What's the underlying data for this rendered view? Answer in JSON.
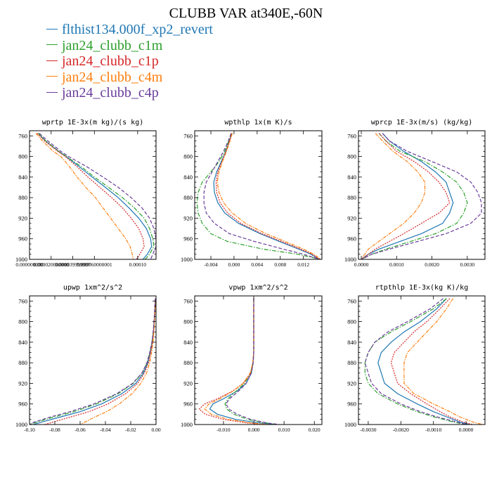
{
  "title": "CLUBB VAR at340E,-60N",
  "legend": [
    {
      "name": "flthist134.000f_xp2_revert",
      "color": "#1f77b4"
    },
    {
      "name": "jan24_clubb_c1m",
      "color": "#2ca02c"
    },
    {
      "name": "jan24_clubb_c1p",
      "color": "#d62728"
    },
    {
      "name": "jan24_clubb_c4m",
      "color": "#ff7f0e"
    },
    {
      "name": "jan24_clubb_c4p",
      "color": "#6a3d9a"
    }
  ],
  "chart_data": [
    {
      "type": "line",
      "title": "wprtp  1E-3x(m kg)/(s kg)",
      "xlim": [
        0,
        0.000117
      ],
      "ylim": [
        1000,
        750
      ],
      "y_ticks": [
        760,
        800,
        840,
        880,
        920,
        960,
        1000
      ],
      "x_ticks": [
        0.0,
        2e-05,
        4e-05,
        6e-05,
        0.0001
      ],
      "x_tick_labels": [
        "0.000000000",
        "0.000020000000",
        "0.000039999997",
        "0.000060000001",
        "0.00010"
      ],
      "y": [
        755,
        770,
        790,
        800,
        820,
        840,
        860,
        880,
        900,
        920,
        940,
        960,
        975,
        990,
        1000
      ],
      "series": [
        {
          "name": "flthist134.000f_xp2_revert",
          "x": [
            8e-06,
            1.5e-05,
            2.7e-05,
            3.4e-05,
            4.6e-05,
            5.8e-05,
            7e-05,
            8.2e-05,
            9.2e-05,
            0.000101,
            0.000108,
            0.000112,
            0.000113,
            0.000109,
            0.000105
          ]
        },
        {
          "name": "jan24_clubb_c1m",
          "x": [
            8e-06,
            1.5e-05,
            2.7e-05,
            3.4e-05,
            4.8e-05,
            6e-05,
            7.3e-05,
            8.6e-05,
            9.7e-05,
            0.000106,
            0.000111,
            0.000114,
            0.000115,
            0.000111,
            0.000107
          ]
        },
        {
          "name": "jan24_clubb_c1p",
          "x": [
            7e-06,
            1.4e-05,
            2.6e-05,
            3.3e-05,
            4.4e-05,
            5.4e-05,
            6.5e-05,
            7.6e-05,
            8.6e-05,
            9.4e-05,
            0.000101,
            0.000105,
            0.000106,
            0.000102,
            9.9e-05
          ]
        },
        {
          "name": "jan24_clubb_c4m",
          "x": [
            6e-06,
            1.2e-05,
            2.2e-05,
            2.9e-05,
            3.7e-05,
            4.4e-05,
            5.2e-05,
            6.1e-05,
            6.8e-05,
            7.5e-05,
            8.2e-05,
            8.9e-05,
            9.3e-05,
            9.5e-05,
            9.6e-05
          ]
        },
        {
          "name": "jan24_clubb_c4p",
          "x": [
            9e-06,
            1.7e-05,
            2.9e-05,
            3.6e-05,
            5.3e-05,
            6.8e-05,
            8.2e-05,
            9.4e-05,
            0.000104,
            0.000111,
            0.000115,
            0.000117,
            0.000117,
            0.000114,
            0.000112
          ]
        }
      ]
    },
    {
      "type": "line",
      "title": "wpthlp  1x(m K)/s",
      "xlim": [
        -0.0068,
        0.0152
      ],
      "ylim": [
        1000,
        750
      ],
      "y_ticks": [
        760,
        800,
        840,
        880,
        920,
        960,
        1000
      ],
      "x_ticks": [
        -0.004,
        0.0,
        0.004,
        0.008,
        0.012
      ],
      "x_tick_labels": [
        "-0.004",
        "0.000",
        "0.004",
        "0.008",
        "0.012"
      ],
      "y": [
        755,
        770,
        790,
        810,
        830,
        850,
        870,
        890,
        910,
        930,
        950,
        965,
        980,
        990,
        1000
      ],
      "series": [
        {
          "name": "flthist134.000f_xp2_revert",
          "x": [
            -0.0004,
            -0.0008,
            -0.0014,
            -0.0022,
            -0.003,
            -0.0035,
            -0.0034,
            -0.0028,
            -0.0016,
            0.0008,
            0.0045,
            0.0078,
            0.0112,
            0.0133,
            0.0147
          ]
        },
        {
          "name": "jan24_clubb_c1m",
          "x": [
            -0.0004,
            -0.0009,
            -0.0016,
            -0.0026,
            -0.004,
            -0.0055,
            -0.0062,
            -0.0064,
            -0.0062,
            -0.0055,
            -0.004,
            -0.0012,
            0.005,
            0.011,
            0.015
          ]
        },
        {
          "name": "jan24_clubb_c1p",
          "x": [
            -0.0004,
            -0.0008,
            -0.0014,
            -0.0021,
            -0.0028,
            -0.0031,
            -0.003,
            -0.0024,
            -0.0011,
            0.0012,
            0.0048,
            0.0082,
            0.0115,
            0.0135,
            0.0148
          ]
        },
        {
          "name": "jan24_clubb_c4m",
          "x": [
            -0.0003,
            -0.0007,
            -0.0013,
            -0.002,
            -0.0026,
            -0.0029,
            -0.0026,
            -0.0018,
            -0.0003,
            0.002,
            0.0055,
            0.0088,
            0.012,
            0.0138,
            0.015
          ]
        },
        {
          "name": "jan24_clubb_c4p",
          "x": [
            -0.0005,
            -0.001,
            -0.0018,
            -0.0028,
            -0.0038,
            -0.0048,
            -0.0052,
            -0.0052,
            -0.0048,
            -0.0034,
            -0.0008,
            0.0035,
            0.0085,
            0.012,
            0.0148
          ]
        }
      ]
    },
    {
      "type": "line",
      "title": "wprcp  1E-3x(m/s) (kg/kg)",
      "xlim": [
        -8e-05,
        0.0035
      ],
      "ylim": [
        1000,
        750
      ],
      "y_ticks": [
        760,
        800,
        840,
        880,
        920,
        960,
        1000
      ],
      "x_ticks": [
        0.0,
        0.001,
        0.002,
        0.003
      ],
      "x_tick_labels": [
        "0.0000",
        "0.0010",
        "0.0020",
        "0.0030"
      ],
      "y": [
        755,
        770,
        790,
        810,
        830,
        850,
        870,
        890,
        910,
        930,
        950,
        965,
        980,
        990,
        1000
      ],
      "series": [
        {
          "name": "flthist134.000f_xp2_revert",
          "x": [
            0.0006,
            0.0008,
            0.0012,
            0.0017,
            0.0021,
            0.0024,
            0.0025,
            0.0026,
            0.0025,
            0.0023,
            0.0017,
            0.0011,
            0.0005,
            0.0002,
            0.0
          ]
        },
        {
          "name": "jan24_clubb_c1m",
          "x": [
            0.0005,
            0.0007,
            0.0011,
            0.0018,
            0.0023,
            0.0027,
            0.0029,
            0.003,
            0.0029,
            0.0027,
            0.0021,
            0.0014,
            0.0007,
            0.0003,
            0.0
          ]
        },
        {
          "name": "jan24_clubb_c1p",
          "x": [
            0.0005,
            0.0007,
            0.001,
            0.0015,
            0.0019,
            0.0022,
            0.0024,
            0.0025,
            0.0022,
            0.0017,
            0.0012,
            0.0008,
            0.0004,
            0.0002,
            0.0
          ]
        },
        {
          "name": "jan24_clubb_c4m",
          "x": [
            0.0004,
            0.0006,
            0.0009,
            0.0013,
            0.0016,
            0.0018,
            0.0018,
            0.0017,
            0.0015,
            0.0012,
            0.0008,
            0.0005,
            0.0002,
            0.0001,
            0.0
          ]
        },
        {
          "name": "jan24_clubb_c4p",
          "x": [
            0.0006,
            0.0008,
            0.0013,
            0.002,
            0.0027,
            0.0031,
            0.0033,
            0.0034,
            0.0034,
            0.0031,
            0.0024,
            0.0016,
            0.0008,
            0.0003,
            0.0
          ]
        }
      ]
    },
    {
      "type": "line",
      "title": "upwp  1xm^2/s^2",
      "xlim": [
        -0.1,
        0.0
      ],
      "ylim": [
        1000,
        750
      ],
      "y_ticks": [
        760,
        800,
        840,
        880,
        920,
        960,
        1000
      ],
      "x_ticks": [
        -0.1,
        -0.08,
        -0.06,
        -0.04,
        -0.02,
        0.0
      ],
      "x_tick_labels": [
        "-0.10",
        "-0.08",
        "-0.06",
        "-0.04",
        "-0.02",
        "0.00"
      ],
      "y": [
        755,
        780,
        800,
        820,
        840,
        860,
        880,
        900,
        920,
        940,
        960,
        975,
        985,
        995,
        1000
      ],
      "series": [
        {
          "name": "flthist134.000f_xp2_revert",
          "x": [
            -0.0005,
            -0.001,
            -0.0015,
            -0.002,
            -0.003,
            -0.0045,
            -0.0065,
            -0.01,
            -0.016,
            -0.027,
            -0.043,
            -0.06,
            -0.075,
            -0.09,
            -0.097
          ]
        },
        {
          "name": "jan24_clubb_c1m",
          "x": [
            -0.0005,
            -0.001,
            -0.0015,
            -0.0022,
            -0.0032,
            -0.0048,
            -0.007,
            -0.011,
            -0.018,
            -0.03,
            -0.047,
            -0.065,
            -0.08,
            -0.094,
            -0.1
          ]
        },
        {
          "name": "jan24_clubb_c1p",
          "x": [
            -0.0005,
            -0.001,
            -0.0014,
            -0.002,
            -0.0028,
            -0.0042,
            -0.006,
            -0.0092,
            -0.0145,
            -0.024,
            -0.038,
            -0.053,
            -0.067,
            -0.081,
            -0.088
          ]
        },
        {
          "name": "jan24_clubb_c4m",
          "x": [
            -0.0004,
            -0.0008,
            -0.0012,
            -0.0017,
            -0.0024,
            -0.0035,
            -0.005,
            -0.0075,
            -0.012,
            -0.019,
            -0.029,
            -0.039,
            -0.048,
            -0.056,
            -0.06
          ]
        },
        {
          "name": "jan24_clubb_c4p",
          "x": [
            -0.0006,
            -0.0011,
            -0.0016,
            -0.0023,
            -0.0033,
            -0.005,
            -0.0072,
            -0.0112,
            -0.0185,
            -0.031,
            -0.049,
            -0.068,
            -0.083,
            -0.096,
            -0.1
          ]
        }
      ]
    },
    {
      "type": "line",
      "title": "vpwp  1xm^2/s^2",
      "xlim": [
        -0.0195,
        0.0225
      ],
      "ylim": [
        1000,
        750
      ],
      "y_ticks": [
        760,
        800,
        840,
        880,
        920,
        960,
        1000
      ],
      "x_ticks": [
        -0.01,
        0.0,
        0.01,
        0.02
      ],
      "x_tick_labels": [
        "-0.010",
        "0.000",
        "0.010",
        "0.020"
      ],
      "y": [
        755,
        790,
        830,
        860,
        880,
        900,
        920,
        935,
        950,
        960,
        970,
        980,
        990,
        997,
        1000
      ],
      "series": [
        {
          "name": "flthist134.000f_xp2_revert",
          "x": [
            0.0,
            0.0,
            0.0,
            0.0,
            -0.0002,
            -0.0008,
            -0.0025,
            -0.0055,
            -0.01,
            -0.0135,
            -0.0145,
            -0.012,
            -0.006,
            0.002,
            0.007
          ]
        },
        {
          "name": "jan24_clubb_c1m",
          "x": [
            0.0,
            0.0,
            0.0,
            0.0,
            -0.0003,
            -0.001,
            -0.003,
            -0.0058,
            -0.0085,
            -0.0095,
            -0.009,
            -0.0065,
            -0.002,
            0.004,
            0.008
          ]
        },
        {
          "name": "jan24_clubb_c1p",
          "x": [
            0.0,
            0.0,
            0.0,
            0.0,
            -0.0003,
            -0.001,
            -0.0035,
            -0.007,
            -0.012,
            -0.0162,
            -0.018,
            -0.016,
            -0.01,
            -0.002,
            0.004
          ]
        },
        {
          "name": "jan24_clubb_c4m",
          "x": [
            0.0,
            0.0,
            0.0,
            0.0,
            -0.0003,
            -0.0012,
            -0.0035,
            -0.0068,
            -0.0112,
            -0.0148,
            -0.0162,
            -0.014,
            -0.0085,
            -0.001,
            0.005
          ]
        },
        {
          "name": "jan24_clubb_c4p",
          "x": [
            0.0,
            0.0,
            0.0,
            0.0,
            -0.0002,
            -0.0008,
            -0.0025,
            -0.005,
            -0.008,
            -0.0092,
            -0.0082,
            -0.0055,
            -0.001,
            0.0045,
            0.0085
          ]
        }
      ]
    },
    {
      "type": "line",
      "title": "rtpthlp  1E-3x(kg K)/kg",
      "xlim": [
        -0.0033,
        0.00058
      ],
      "ylim": [
        1000,
        750
      ],
      "y_ticks": [
        760,
        800,
        840,
        880,
        920,
        960,
        1000
      ],
      "x_ticks": [
        -0.003,
        -0.002,
        -0.001,
        0.0
      ],
      "x_tick_labels": [
        "-0.0030",
        "-0.0020",
        "-0.0010",
        "0.0000"
      ],
      "y": [
        755,
        775,
        800,
        820,
        840,
        860,
        880,
        900,
        920,
        940,
        960,
        975,
        985,
        995,
        1000
      ],
      "series": [
        {
          "name": "flthist134.000f_xp2_revert",
          "x": [
            -0.0006,
            -0.0009,
            -0.0014,
            -0.0019,
            -0.0023,
            -0.0026,
            -0.0027,
            -0.0026,
            -0.0025,
            -0.0021,
            -0.0015,
            -0.001,
            -0.0006,
            -0.0002,
            0.0001
          ]
        },
        {
          "name": "jan24_clubb_c1m",
          "x": [
            -0.0006,
            -0.001,
            -0.0017,
            -0.0023,
            -0.0028,
            -0.003,
            -0.0031,
            -0.0031,
            -0.003,
            -0.0027,
            -0.0021,
            -0.0015,
            -0.001,
            -0.0004,
            0.0
          ]
        },
        {
          "name": "jan24_clubb_c1p",
          "x": [
            -0.0005,
            -0.0008,
            -0.0012,
            -0.0016,
            -0.0019,
            -0.0022,
            -0.0023,
            -0.0022,
            -0.0021,
            -0.0017,
            -0.0012,
            -0.0008,
            -0.0005,
            -0.0001,
            0.0002
          ]
        },
        {
          "name": "jan24_clubb_c4m",
          "x": [
            -0.0004,
            -0.0006,
            -0.0009,
            -0.0012,
            -0.0015,
            -0.0018,
            -0.0019,
            -0.0019,
            -0.0019,
            -0.0016,
            -0.001,
            -0.0005,
            -0.0002,
            0.0002,
            0.0005
          ]
        },
        {
          "name": "jan24_clubb_c4p",
          "x": [
            -0.0007,
            -0.0011,
            -0.0018,
            -0.0024,
            -0.0028,
            -0.003,
            -0.0031,
            -0.003,
            -0.0029,
            -0.0026,
            -0.002,
            -0.0014,
            -0.0009,
            -0.0003,
            0.0
          ]
        }
      ]
    }
  ]
}
